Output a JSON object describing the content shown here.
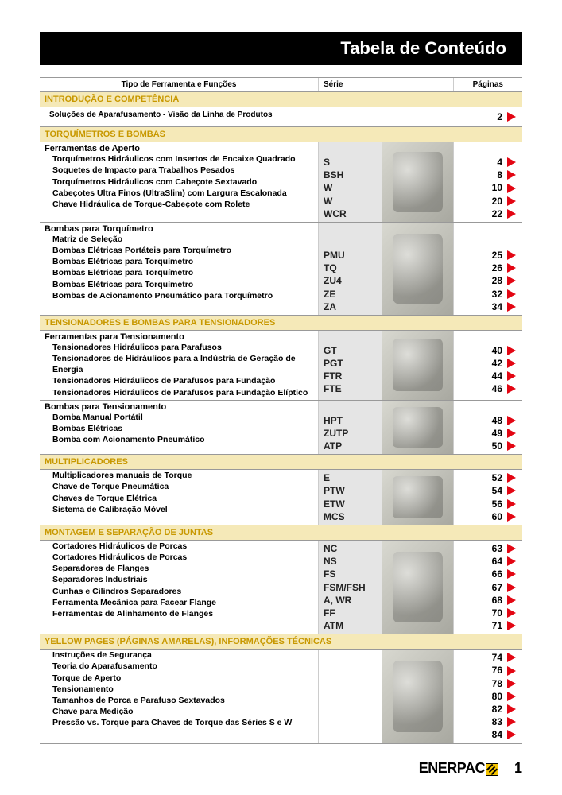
{
  "title": "Tabela de Conteúdo",
  "headers": {
    "tool": "Tipo de Ferramenta e Funções",
    "series": "Série",
    "pages": "Páginas"
  },
  "intro": {
    "header": "INTRODUÇÃO E COMPETÊNCIA",
    "row": {
      "label": "Soluções de Aparafusamento  - Visão da Linha de Produtos",
      "page": "2"
    }
  },
  "sections": [
    {
      "header": "TORQUÍMETROS E BOMBAS",
      "groups": [
        {
          "title": "Ferramentas de Aperto",
          "rows": [
            {
              "name": "Torquímetros Hidráulicos com Insertos de Encaixe Quadrado",
              "series": "S",
              "page": "4"
            },
            {
              "name": "Soquetes de Impacto para Trabalhos Pesados",
              "series": "BSH",
              "page": "8"
            },
            {
              "name": "Torquímetros Hidráulicos com Cabeçote Sextavado",
              "series": "W",
              "page": "10"
            },
            {
              "name": "Cabeçotes Ultra Finos (UltraSlim) com Largura Escalonada",
              "series": "W",
              "page": "20"
            },
            {
              "name": "Chave Hidráulica de Torque-Cabeçote com Rolete",
              "series": "WCR",
              "page": "22"
            }
          ]
        },
        {
          "title": "Bombas para Torquímetro",
          "rows": [
            {
              "name": "Matriz de Seleção",
              "series": "",
              "page": ""
            },
            {
              "name": "Bombas Elétricas Portáteis para Torquímetro",
              "series": "PMU",
              "page": "25"
            },
            {
              "name": "Bombas Elétricas para Torquímetro",
              "series": "TQ",
              "page": "26"
            },
            {
              "name": "Bombas Elétricas para Torquímetro",
              "series": "ZU4",
              "page": "28"
            },
            {
              "name": "Bombas Elétricas para Torquímetro",
              "series": "ZE",
              "page": "32"
            },
            {
              "name": "Bombas de Acionamento Pneumático para Torquímetro",
              "series": "ZA",
              "page": "34"
            }
          ]
        }
      ]
    },
    {
      "header": "TENSIONADORES E BOMBAS PARA TENSIONADORES",
      "groups": [
        {
          "title": "Ferramentas para Tensionamento",
          "rows": [
            {
              "name": "Tensionadores Hidráulicos para Parafusos",
              "series": "GT",
              "page": "40"
            },
            {
              "name": "Tensionadores de Hidráulicos para a Indústria de Geração de Energia",
              "series": "PGT",
              "page": "42"
            },
            {
              "name": "Tensionadores Hidráulicos de Parafusos para Fundação",
              "series": "FTR",
              "page": "44"
            },
            {
              "name": "Tensionadores Hidráulicos de Parafusos para Fundação Elíptico",
              "series": "FTE",
              "page": "46"
            }
          ]
        },
        {
          "title": "Bombas para Tensionamento",
          "rows": [
            {
              "name": "Bomba Manual Portátil",
              "series": "HPT",
              "page": "48"
            },
            {
              "name": "Bombas Elétricas",
              "series": "ZUTP",
              "page": "49"
            },
            {
              "name": "Bomba com Acionamento Pneumático",
              "series": "ATP",
              "page": "50"
            }
          ]
        }
      ]
    },
    {
      "header": "MULTIPLICADORES",
      "groups": [
        {
          "title": "",
          "rows": [
            {
              "name": "Multiplicadores manuais de Torque",
              "series": "E",
              "page": "52"
            },
            {
              "name": "Chave de Torque Pneumática",
              "series": "PTW",
              "page": "54"
            },
            {
              "name": "Chaves de Torque Elétrica",
              "series": "ETW",
              "page": "56"
            },
            {
              "name": "Sistema de Calibração Móvel",
              "series": "MCS",
              "page": "60"
            }
          ]
        }
      ]
    },
    {
      "header": "MONTAGEM E SEPARAÇÃO DE JUNTAS",
      "groups": [
        {
          "title": "",
          "rows": [
            {
              "name": "Cortadores Hidráulicos de Porcas",
              "series": "NC",
              "page": "63"
            },
            {
              "name": "Cortadores Hidráulicos de Porcas",
              "series": "NS",
              "page": "64"
            },
            {
              "name": "Separadores de Flanges",
              "series": "FS",
              "page": "66"
            },
            {
              "name": "Separadores Industriais",
              "series": "FSM/FSH",
              "page": "67"
            },
            {
              "name": "Cunhas e Cilindros Separadores",
              "series": "A, WR",
              "page": "68"
            },
            {
              "name": "Ferramenta Mecânica para Facear Flange",
              "series": "FF",
              "page": "70"
            },
            {
              "name": "Ferramentas de Alinhamento de Flanges",
              "series": "ATM",
              "page": "71"
            }
          ]
        }
      ]
    },
    {
      "header": "YELLOW PAGES (PÁGINAS AMARELAS), INFORMAÇÕES TÉCNICAS",
      "groups": [
        {
          "title": "",
          "noSeries": true,
          "rows": [
            {
              "name": "Instruções de Segurança",
              "series": "",
              "page": "74"
            },
            {
              "name": "Teoria do Aparafusamento",
              "series": "",
              "page": "76"
            },
            {
              "name": "Torque de Aperto",
              "series": "",
              "page": "78"
            },
            {
              "name": "Tensionamento",
              "series": "",
              "page": "80"
            },
            {
              "name": "Tamanhos de Porca e Parafuso Sextavados",
              "series": "",
              "page": "82"
            },
            {
              "name": "Chave para Medição",
              "series": "",
              "page": "83"
            },
            {
              "name": "Pressão vs. Torque para Chaves de Torque das Séries S e W",
              "series": "",
              "page": "84"
            }
          ]
        }
      ]
    }
  ],
  "footer": {
    "brand": "ENERPAC",
    "pageNum": "1"
  },
  "colors": {
    "section_bg": "#f5e9b8",
    "section_text": "#c89800",
    "series_bg": "#e5e5e5",
    "triangle": "#e30613",
    "brand_yellow": "#f5c400"
  }
}
